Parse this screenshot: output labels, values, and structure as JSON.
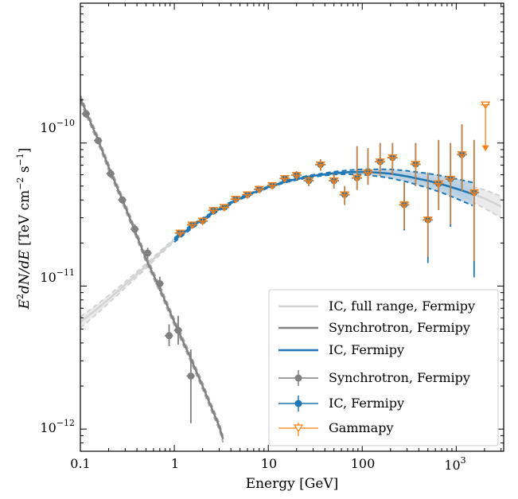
{
  "chart_data": {
    "type": "line",
    "xscale": "log",
    "yscale": "log",
    "xlim": [
      0.1,
      3200
    ],
    "ylim": [
      7e-13,
      9.5e-10
    ],
    "xlabel": "Energy [GeV]",
    "ylabel_parts": {
      "e": "E",
      "sup2": "2",
      "dnde": "dN/dE",
      "unit_open": " [TeV cm",
      "exp_m2": "−2",
      "s": " s",
      "exp_m1": "−1",
      "unit_close": "]"
    },
    "x_ticks": [
      {
        "value": 0.1,
        "label": "0.1"
      },
      {
        "value": 1,
        "label": "1"
      },
      {
        "value": 10,
        "label": "10"
      },
      {
        "value": 100,
        "label": "100"
      }
    ],
    "x_tick_pow": {
      "value": 1000,
      "base": "10",
      "exp": "3"
    },
    "y_ticks": [
      {
        "value": 1e-12,
        "base": "10",
        "exp": "−12"
      },
      {
        "value": 1e-11,
        "base": "10",
        "exp": "−11"
      },
      {
        "value": 1e-10,
        "base": "10",
        "exp": "−10"
      }
    ],
    "grid": false,
    "legend_position": "bottom-right",
    "legend": [
      {
        "label": "IC, full range, Fermipy",
        "kind": "line",
        "color": "#cccccc"
      },
      {
        "label": "Synchrotron, Fermipy",
        "kind": "line",
        "color": "#808080"
      },
      {
        "label": "IC, Fermipy",
        "kind": "line",
        "color": "#1f77b4"
      },
      {
        "label": "Synchrotron, Fermipy",
        "kind": "point",
        "color": "#808080"
      },
      {
        "label": "IC, Fermipy",
        "kind": "point",
        "color": "#1f77b4"
      },
      {
        "label": "Gammapy",
        "kind": "triangle",
        "color": "#ff7f0e"
      }
    ],
    "colors": {
      "ic_full": "#d3d3d3",
      "sync": "#808080",
      "ic": "#1f77b4",
      "ic_band": "#a6c8e6",
      "gammapy": "#ff7f0e"
    },
    "series": [
      {
        "name": "IC, full range, Fermipy",
        "type": "line",
        "x": [
          0.1,
          0.15,
          0.2,
          0.3,
          0.5,
          0.7,
          1.0,
          1.5,
          2,
          3,
          5,
          7,
          10,
          15,
          20,
          30,
          50,
          70,
          100,
          150,
          200,
          300,
          500,
          700,
          1000,
          1500,
          2000,
          3000
        ],
        "y": [
          5.6e-12,
          6.9e-12,
          8.1e-12,
          1.02e-11,
          1.38e-11,
          1.7e-11,
          2.1e-11,
          2.58e-11,
          2.92e-11,
          3.45e-11,
          4.1e-11,
          4.5e-11,
          4.92e-11,
          5.35e-11,
          5.6e-11,
          5.9e-11,
          6.15e-11,
          6.25e-11,
          6.28e-11,
          6.2e-11,
          6.1e-11,
          5.85e-11,
          5.45e-11,
          5.15e-11,
          4.8e-11,
          4.4e-11,
          4.1e-11,
          3.6e-11
        ],
        "band_lo": [
          5.1e-12,
          6.4e-12,
          7.6e-12,
          9.7e-12,
          1.33e-11,
          1.65e-11,
          2.05e-11,
          2.53e-11,
          2.87e-11,
          3.4e-11,
          4.05e-11,
          4.45e-11,
          4.87e-11,
          5.3e-11,
          5.55e-11,
          5.85e-11,
          6.08e-11,
          6.15e-11,
          6.15e-11,
          6e-11,
          5.85e-11,
          5.55e-11,
          5.05e-11,
          4.7e-11,
          4.3e-11,
          3.85e-11,
          3.5e-11,
          3e-11
        ],
        "band_hi": [
          6.1e-12,
          7.4e-12,
          8.6e-12,
          1.07e-11,
          1.43e-11,
          1.75e-11,
          2.15e-11,
          2.63e-11,
          2.97e-11,
          3.5e-11,
          4.15e-11,
          4.55e-11,
          4.97e-11,
          5.4e-11,
          5.65e-11,
          5.95e-11,
          6.22e-11,
          6.35e-11,
          6.42e-11,
          6.4e-11,
          6.35e-11,
          6.18e-11,
          5.85e-11,
          5.6e-11,
          5.3e-11,
          4.95e-11,
          4.7e-11,
          4.25e-11
        ]
      },
      {
        "name": "Synchrotron, Fermipy",
        "type": "line",
        "x": [
          0.1,
          0.15,
          0.2,
          0.3,
          0.5,
          0.7,
          1.0,
          1.5,
          2,
          3,
          3.3
        ],
        "y": [
          2.05e-10,
          1.1e-10,
          6.8e-11,
          3.6e-11,
          1.55e-11,
          9.6e-12,
          5.6e-12,
          3.1e-12,
          2e-12,
          1.05e-12,
          8.5e-13
        ]
      },
      {
        "name": "IC, Fermipy",
        "type": "line",
        "x": [
          1.0,
          1.5,
          2,
          3,
          5,
          7,
          10,
          15,
          20,
          30,
          50,
          70,
          100,
          150,
          200,
          300,
          500,
          700,
          1000,
          1500
        ],
        "y": [
          2.1e-11,
          2.58e-11,
          2.92e-11,
          3.45e-11,
          4.1e-11,
          4.5e-11,
          4.92e-11,
          5.35e-11,
          5.6e-11,
          5.9e-11,
          6.15e-11,
          6.25e-11,
          6.28e-11,
          6.2e-11,
          6.1e-11,
          5.85e-11,
          5.45e-11,
          5.15e-11,
          4.8e-11,
          4.4e-11
        ],
        "band_lo": [
          2.03e-11,
          2.5e-11,
          2.85e-11,
          3.38e-11,
          4.03e-11,
          4.44e-11,
          4.86e-11,
          5.28e-11,
          5.52e-11,
          5.8e-11,
          6.02e-11,
          6.06e-11,
          6.02e-11,
          5.85e-11,
          5.68e-11,
          5.35e-11,
          4.85e-11,
          4.5e-11,
          4.1e-11,
          3.65e-11
        ],
        "band_hi": [
          2.17e-11,
          2.66e-11,
          2.99e-11,
          3.52e-11,
          4.17e-11,
          4.56e-11,
          4.98e-11,
          5.42e-11,
          5.68e-11,
          6e-11,
          6.3e-11,
          6.45e-11,
          6.55e-11,
          6.55e-11,
          6.55e-11,
          6.4e-11,
          6.12e-11,
          5.9e-11,
          5.62e-11,
          5.3e-11
        ]
      },
      {
        "name": "Synchrotron, Fermipy",
        "type": "errorbar",
        "points": [
          {
            "x": 0.115,
            "y": 1.6e-10,
            "ylo": 1.5e-10,
            "yhi": 1.7e-10
          },
          {
            "x": 0.155,
            "y": 1.04e-10,
            "ylo": 9.8e-11,
            "yhi": 1.1e-10
          },
          {
            "x": 0.21,
            "y": 6.1e-11,
            "ylo": 5.7e-11,
            "yhi": 6.5e-11
          },
          {
            "x": 0.28,
            "y": 4e-11,
            "ylo": 3.75e-11,
            "yhi": 4.25e-11
          },
          {
            "x": 0.38,
            "y": 2.5e-11,
            "ylo": 2.3e-11,
            "yhi": 2.7e-11
          },
          {
            "x": 0.52,
            "y": 1.7e-11,
            "ylo": 1.55e-11,
            "yhi": 1.85e-11
          },
          {
            "x": 0.7,
            "y": 1.04e-11,
            "ylo": 9.2e-12,
            "yhi": 1.16e-11
          },
          {
            "x": 0.88,
            "y": 4.5e-12,
            "ylo": 3.8e-12,
            "yhi": 5.4e-12
          },
          {
            "x": 1.1,
            "y": 4.9e-12,
            "ylo": 3.9e-12,
            "yhi": 6.2e-12
          },
          {
            "x": 1.5,
            "y": 2.35e-12,
            "ylo": 1.1e-12,
            "yhi": 3.6e-12
          }
        ]
      },
      {
        "name": "IC, Fermipy",
        "type": "errorbar",
        "points": [
          {
            "x": 1.15,
            "y": 2.35e-11,
            "ylo": 2.22e-11,
            "yhi": 2.48e-11
          },
          {
            "x": 1.55,
            "y": 2.68e-11,
            "ylo": 2.56e-11,
            "yhi": 2.8e-11
          },
          {
            "x": 2.0,
            "y": 2.85e-11,
            "ylo": 2.73e-11,
            "yhi": 2.97e-11
          },
          {
            "x": 2.6,
            "y": 3.38e-11,
            "ylo": 3.24e-11,
            "yhi": 3.52e-11
          },
          {
            "x": 3.4,
            "y": 3.55e-11,
            "ylo": 3.41e-11,
            "yhi": 3.69e-11
          },
          {
            "x": 4.5,
            "y": 4.05e-11,
            "ylo": 3.88e-11,
            "yhi": 4.22e-11
          },
          {
            "x": 6.0,
            "y": 4.35e-11,
            "ylo": 4.17e-11,
            "yhi": 4.53e-11
          },
          {
            "x": 8.0,
            "y": 4.75e-11,
            "ylo": 4.54e-11,
            "yhi": 4.96e-11
          },
          {
            "x": 11.0,
            "y": 5.05e-11,
            "ylo": 4.8e-11,
            "yhi": 5.3e-11
          },
          {
            "x": 15.0,
            "y": 5.65e-11,
            "ylo": 5.35e-11,
            "yhi": 5.95e-11
          },
          {
            "x": 20.0,
            "y": 5.95e-11,
            "ylo": 5.55e-11,
            "yhi": 6.35e-11
          },
          {
            "x": 27.0,
            "y": 5.45e-11,
            "ylo": 5e-11,
            "yhi": 5.9e-11
          },
          {
            "x": 36.0,
            "y": 7.05e-11,
            "ylo": 6.4e-11,
            "yhi": 7.7e-11
          },
          {
            "x": 50.0,
            "y": 5.45e-11,
            "ylo": 4.8e-11,
            "yhi": 6.1e-11
          },
          {
            "x": 65.0,
            "y": 4.35e-11,
            "ylo": 3.7e-11,
            "yhi": 5e-11
          },
          {
            "x": 88.0,
            "y": 5.7e-11,
            "ylo": 4.7e-11,
            "yhi": 9.5e-11
          },
          {
            "x": 115.0,
            "y": 6.2e-11,
            "ylo": 5.1e-11,
            "yhi": 9.2e-11
          },
          {
            "x": 155.0,
            "y": 7.4e-11,
            "ylo": 5.9e-11,
            "yhi": 1e-10
          },
          {
            "x": 210.0,
            "y": 7.9e-11,
            "ylo": 6e-11,
            "yhi": 1e-10
          },
          {
            "x": 280.0,
            "y": 3.7e-11,
            "ylo": 2.45e-11,
            "yhi": 5.3e-11
          },
          {
            "x": 370.0,
            "y": 7.1e-11,
            "ylo": 5e-11,
            "yhi": 1e-10
          },
          {
            "x": 500.0,
            "y": 2.9e-11,
            "ylo": 1.45e-11,
            "yhi": 6.2e-11
          },
          {
            "x": 650.0,
            "y": 5.2e-11,
            "ylo": 3.4e-11,
            "yhi": 1.05e-10
          },
          {
            "x": 870.0,
            "y": 5.6e-11,
            "ylo": 2.6e-11,
            "yhi": 1e-10
          },
          {
            "x": 1150.0,
            "y": 8.3e-11,
            "ylo": 4.6e-11,
            "yhi": 1.35e-10
          },
          {
            "x": 1550.0,
            "y": 4.5e-11,
            "ylo": 1.15e-11,
            "yhi": 1.05e-10
          }
        ]
      },
      {
        "name": "Gammapy",
        "type": "errorbar",
        "points": [
          {
            "x": 1.15,
            "y": 2.35e-11,
            "ylo": 2.22e-11,
            "yhi": 2.48e-11
          },
          {
            "x": 1.55,
            "y": 2.68e-11,
            "ylo": 2.56e-11,
            "yhi": 2.8e-11
          },
          {
            "x": 2.0,
            "y": 2.85e-11,
            "ylo": 2.73e-11,
            "yhi": 2.97e-11
          },
          {
            "x": 2.6,
            "y": 3.38e-11,
            "ylo": 3.24e-11,
            "yhi": 3.52e-11
          },
          {
            "x": 3.4,
            "y": 3.55e-11,
            "ylo": 3.41e-11,
            "yhi": 3.69e-11
          },
          {
            "x": 4.5,
            "y": 4.05e-11,
            "ylo": 3.88e-11,
            "yhi": 4.22e-11
          },
          {
            "x": 6.0,
            "y": 4.35e-11,
            "ylo": 4.17e-11,
            "yhi": 4.53e-11
          },
          {
            "x": 8.0,
            "y": 4.75e-11,
            "ylo": 4.54e-11,
            "yhi": 4.96e-11
          },
          {
            "x": 11.0,
            "y": 5.05e-11,
            "ylo": 4.8e-11,
            "yhi": 5.3e-11
          },
          {
            "x": 15.0,
            "y": 5.65e-11,
            "ylo": 5.35e-11,
            "yhi": 5.95e-11
          },
          {
            "x": 20.0,
            "y": 5.95e-11,
            "ylo": 5.55e-11,
            "yhi": 6.35e-11
          },
          {
            "x": 27.0,
            "y": 5.45e-11,
            "ylo": 5e-11,
            "yhi": 5.9e-11
          },
          {
            "x": 36.0,
            "y": 7.05e-11,
            "ylo": 6.4e-11,
            "yhi": 7.7e-11
          },
          {
            "x": 50.0,
            "y": 5.45e-11,
            "ylo": 4.8e-11,
            "yhi": 6.1e-11
          },
          {
            "x": 65.0,
            "y": 4.35e-11,
            "ylo": 3.7e-11,
            "yhi": 5e-11
          },
          {
            "x": 88.0,
            "y": 5.7e-11,
            "ylo": 4.7e-11,
            "yhi": 9.5e-11
          },
          {
            "x": 115.0,
            "y": 6.2e-11,
            "ylo": 5.1e-11,
            "yhi": 9.2e-11
          },
          {
            "x": 155.0,
            "y": 7.4e-11,
            "ylo": 5.9e-11,
            "yhi": 1e-10
          },
          {
            "x": 210.0,
            "y": 7.9e-11,
            "ylo": 6e-11,
            "yhi": 1e-10
          },
          {
            "x": 280.0,
            "y": 3.7e-11,
            "ylo": 2.5e-11,
            "yhi": 5.3e-11
          },
          {
            "x": 370.0,
            "y": 7.1e-11,
            "ylo": 5e-11,
            "yhi": 1e-10
          },
          {
            "x": 500.0,
            "y": 2.9e-11,
            "ylo": 1.6e-11,
            "yhi": 6.2e-11
          },
          {
            "x": 650.0,
            "y": 5.2e-11,
            "ylo": 3.4e-11,
            "yhi": 1.05e-10
          },
          {
            "x": 870.0,
            "y": 5.6e-11,
            "ylo": 2.7e-11,
            "yhi": 1e-10
          },
          {
            "x": 1150.0,
            "y": 8.3e-11,
            "ylo": 4.6e-11,
            "yhi": 1.35e-10
          },
          {
            "x": 1550.0,
            "y": 4.5e-11,
            "ylo": 1.5e-11,
            "yhi": 1.05e-10
          }
        ],
        "upper_limits": [
          {
            "x": 2050.0,
            "y": 1.85e-10,
            "y_arrow_end": 8.8e-11
          }
        ]
      }
    ]
  }
}
